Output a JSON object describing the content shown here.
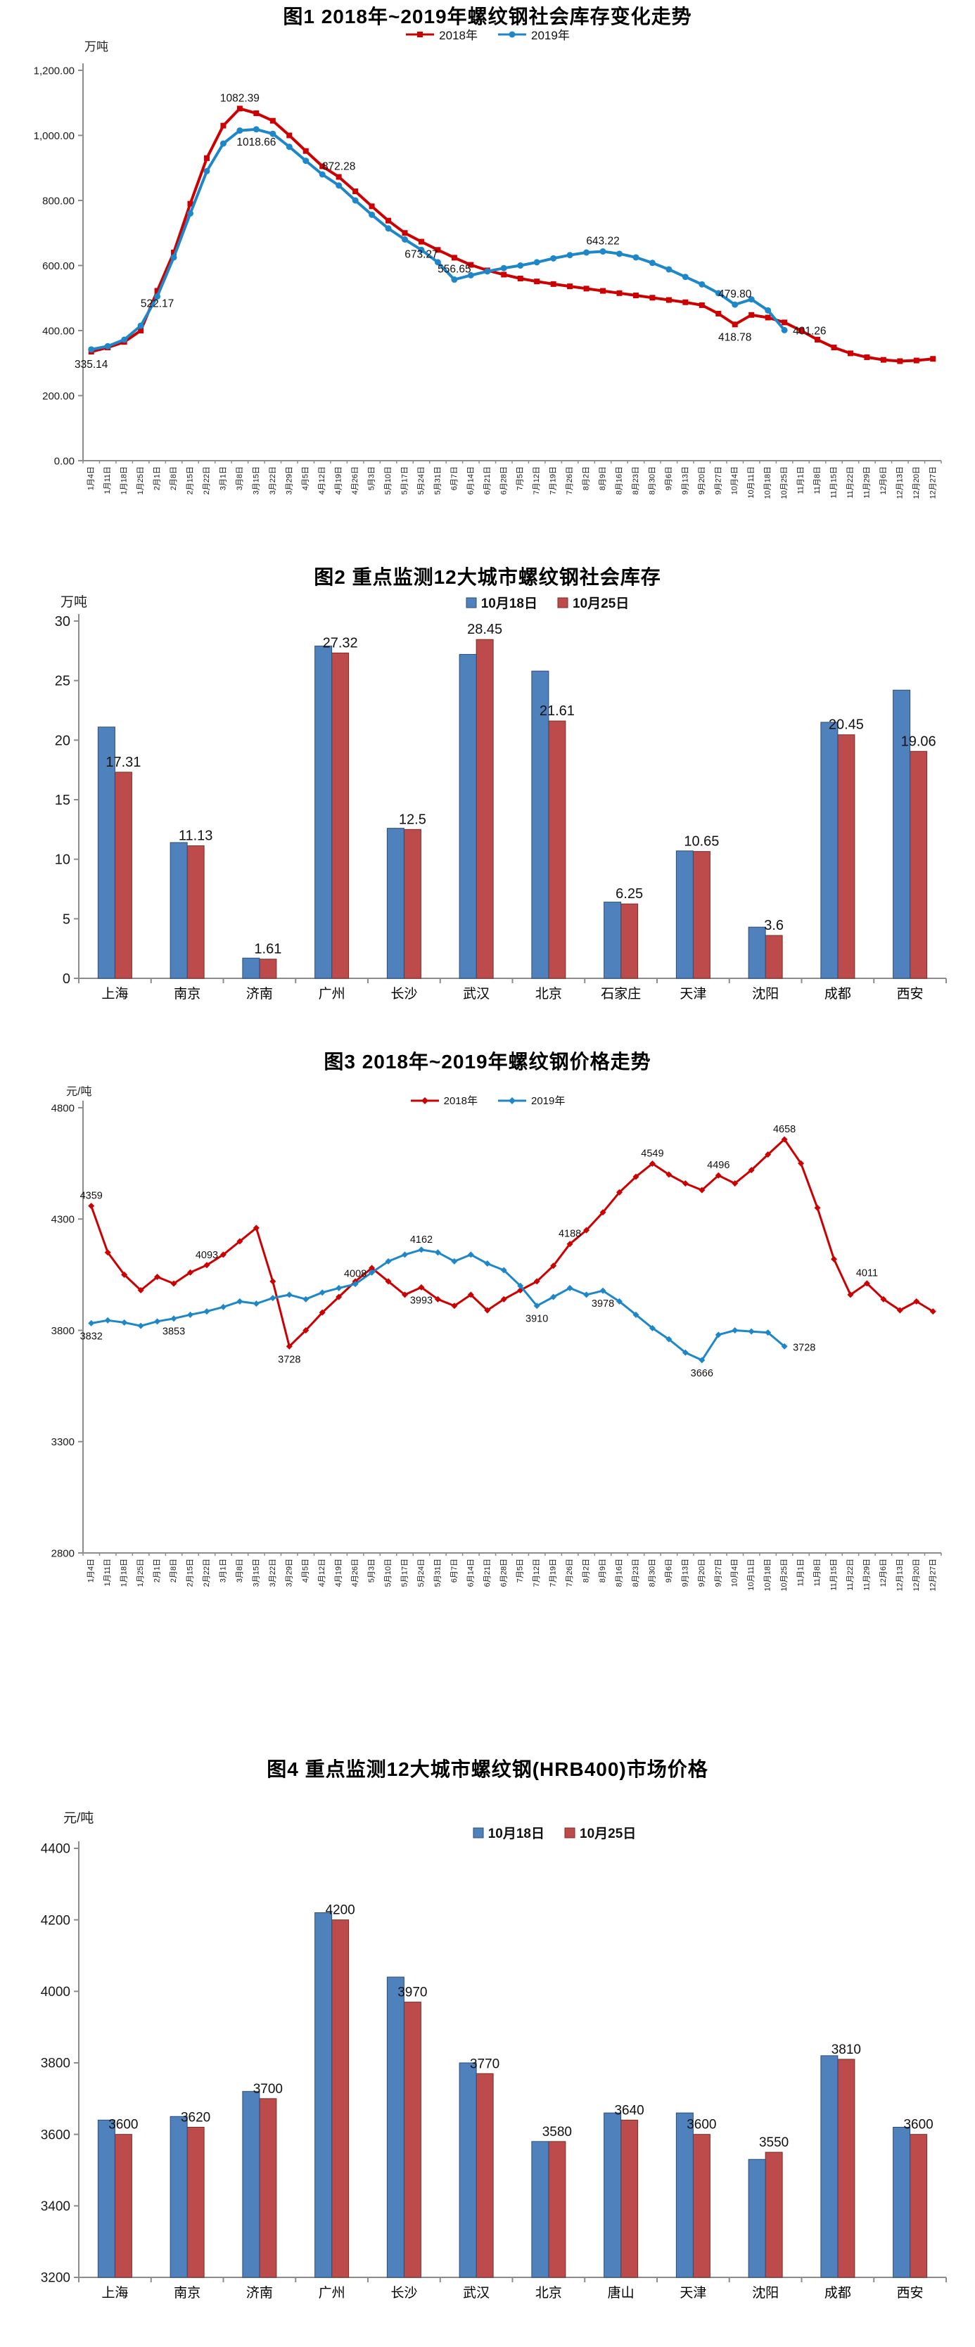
{
  "page": {
    "background": "#ffffff"
  },
  "week_dates": [
    "1月4日",
    "1月11日",
    "1月18日",
    "1月25日",
    "2月1日",
    "2月8日",
    "2月15日",
    "2月22日",
    "3月1日",
    "3月8日",
    "3月15日",
    "3月22日",
    "3月29日",
    "4月5日",
    "4月12日",
    "4月19日",
    "4月26日",
    "5月3日",
    "5月10日",
    "5月17日",
    "5月24日",
    "5月31日",
    "6月7日",
    "6月14日",
    "6月21日",
    "6月28日",
    "7月5日",
    "7月12日",
    "7月19日",
    "7月26日",
    "8月2日",
    "8月9日",
    "8月16日",
    "8月23日",
    "8月30日",
    "9月6日",
    "9月13日",
    "9月20日",
    "9月27日",
    "10月4日",
    "10月11日",
    "10月18日",
    "10月25日",
    "11月1日",
    "11月8日",
    "11月15日",
    "11月22日",
    "11月29日",
    "12月6日",
    "12月13日",
    "12月20日",
    "12月27日"
  ],
  "chart_data": [
    {
      "id": "fig1",
      "type": "line",
      "title": "图1 2018年~2019年螺纹钢社会库存变化走势",
      "ylabel": "万吨",
      "ylim": [
        0,
        1200
      ],
      "grid": false,
      "legend_position": "top-center",
      "y_ticks": [
        {
          "v": 0,
          "label": "0.00"
        },
        {
          "v": 200,
          "label": "200.00"
        },
        {
          "v": 400,
          "label": "400.00"
        },
        {
          "v": 600,
          "label": "600.00"
        },
        {
          "v": 800,
          "label": "800.00"
        },
        {
          "v": 1000,
          "label": "1,000.00"
        },
        {
          "v": 1200,
          "label": "1,200.00"
        }
      ],
      "legend": [
        {
          "label": "2018年",
          "color": "#cc0000",
          "marker": "square"
        },
        {
          "label": "2019年",
          "color": "#1e87c9",
          "marker": "circle"
        }
      ],
      "series": [
        {
          "name": "2018年",
          "color": "#cc0000",
          "marker": "square",
          "values": [
            335.14,
            348,
            365,
            400,
            522.17,
            640,
            790,
            930,
            1030,
            1082.39,
            1068,
            1045,
            1000,
            952,
            905,
            872.28,
            828,
            782,
            738,
            700,
            673.27,
            648,
            624,
            602,
            585,
            572,
            560,
            551,
            543,
            536,
            529,
            522,
            515,
            508,
            501,
            494,
            487,
            478,
            452,
            418.78,
            448,
            440,
            425,
            400,
            372,
            348,
            330,
            318,
            310,
            306,
            308,
            313
          ],
          "point_labels": [
            {
              "i": 0,
              "text": "335.14",
              "pos": "below"
            },
            {
              "i": 4,
              "text": "522.17",
              "pos": "below"
            },
            {
              "i": 9,
              "text": "1082.39",
              "pos": "above"
            },
            {
              "i": 15,
              "text": "872.28",
              "pos": "above"
            },
            {
              "i": 20,
              "text": "673.27",
              "pos": "below"
            },
            {
              "i": 39,
              "text": "418.78",
              "pos": "below"
            }
          ]
        },
        {
          "name": "2019年",
          "color": "#1e87c9",
          "marker": "circle",
          "values": [
            342,
            352,
            372,
            415,
            505,
            625,
            760,
            890,
            975,
            1015,
            1018.66,
            1005,
            965,
            922,
            880,
            846,
            800,
            756,
            714,
            680,
            648,
            610,
            556.65,
            570,
            582,
            592,
            600,
            610,
            622,
            632,
            640,
            643.22,
            636,
            625,
            608,
            588,
            565,
            542,
            515,
            479.8,
            496,
            462,
            401.26
          ],
          "point_labels": [
            {
              "i": 10,
              "text": "1018.66",
              "pos": "below"
            },
            {
              "i": 22,
              "text": "556.65",
              "pos": "above"
            },
            {
              "i": 31,
              "text": "643.22",
              "pos": "above"
            },
            {
              "i": 39,
              "text": "479.80",
              "pos": "above"
            },
            {
              "i": 42,
              "text": "401.26",
              "pos": "right"
            }
          ]
        }
      ]
    },
    {
      "id": "fig2",
      "type": "bar",
      "title": "图2 重点监测12大城市螺纹钢社会库存",
      "ylabel": "万吨",
      "ylim": [
        0,
        30
      ],
      "y_ticks": [
        {
          "v": 0,
          "label": "0"
        },
        {
          "v": 5,
          "label": "5"
        },
        {
          "v": 10,
          "label": "10"
        },
        {
          "v": 15,
          "label": "15"
        },
        {
          "v": 20,
          "label": "20"
        },
        {
          "v": 25,
          "label": "25"
        },
        {
          "v": 30,
          "label": "30"
        }
      ],
      "categories": [
        "上海",
        "南京",
        "济南",
        "广州",
        "长沙",
        "武汉",
        "北京",
        "石家庄",
        "天津",
        "沈阳",
        "成都",
        "西安"
      ],
      "legend": [
        {
          "label": "10月18日",
          "color": "#4f81bd",
          "border": "#2c4d75"
        },
        {
          "label": "10月25日",
          "color": "#bd4b4b",
          "border": "#7c2d25"
        }
      ],
      "series": [
        {
          "name": "10月18日",
          "color": "#4f81bd",
          "border": "#2c4d75",
          "values": [
            21.1,
            11.4,
            1.7,
            27.9,
            12.6,
            27.2,
            25.8,
            6.4,
            10.7,
            4.3,
            21.5,
            24.2
          ]
        },
        {
          "name": "10月25日",
          "color": "#bd4b4b",
          "border": "#7c2d25",
          "values": [
            17.31,
            11.13,
            1.61,
            27.32,
            12.5,
            28.45,
            21.61,
            6.25,
            10.65,
            3.6,
            20.45,
            19.06
          ]
        }
      ],
      "bar_labels": [
        "17.31",
        "11.13",
        "1.61",
        "27.32",
        "12.5",
        "28.45",
        "21.61",
        "6.25",
        "10.65",
        "3.6",
        "20.45",
        "19.06"
      ]
    },
    {
      "id": "fig3",
      "type": "line",
      "title": "图3 2018年~2019年螺纹钢价格走势",
      "ylabel": "元/吨",
      "ylim": [
        2800,
        4800
      ],
      "grid": false,
      "legend_position": "top-center",
      "y_ticks": [
        {
          "v": 2800,
          "label": "2800"
        },
        {
          "v": 3300,
          "label": "3300"
        },
        {
          "v": 3800,
          "label": "3800"
        },
        {
          "v": 4300,
          "label": "4300"
        },
        {
          "v": 4800,
          "label": "4800"
        }
      ],
      "legend": [
        {
          "label": "2018年",
          "color": "#cc0000",
          "marker": "diamond"
        },
        {
          "label": "2019年",
          "color": "#1e87c9",
          "marker": "diamond"
        }
      ],
      "series": [
        {
          "name": "2018年",
          "color": "#cc0000",
          "marker": "diamond",
          "values": [
            4359,
            4150,
            4050,
            3980,
            4040,
            4010,
            4060,
            4093,
            4140,
            4200,
            4260,
            4020,
            3728,
            3800,
            3880,
            3950,
            4020,
            4080,
            4020,
            3960,
            3993,
            3940,
            3910,
            3960,
            3890,
            3940,
            3980,
            4020,
            4090,
            4188,
            4250,
            4330,
            4420,
            4490,
            4549,
            4500,
            4460,
            4430,
            4496,
            4460,
            4520,
            4590,
            4658,
            4550,
            4350,
            4120,
            3960,
            4011,
            3940,
            3890,
            3930,
            3885
          ],
          "point_labels": [
            {
              "i": 0,
              "text": "4359",
              "pos": "above"
            },
            {
              "i": 7,
              "text": "4093",
              "pos": "above"
            },
            {
              "i": 12,
              "text": "3728",
              "pos": "below"
            },
            {
              "i": 20,
              "text": "3993",
              "pos": "below"
            },
            {
              "i": 29,
              "text": "4188",
              "pos": "above"
            },
            {
              "i": 34,
              "text": "4549",
              "pos": "above"
            },
            {
              "i": 38,
              "text": "4496",
              "pos": "above"
            },
            {
              "i": 42,
              "text": "4658",
              "pos": "above"
            },
            {
              "i": 47,
              "text": "4011",
              "pos": "above"
            }
          ]
        },
        {
          "name": "2019年",
          "color": "#1e87c9",
          "marker": "diamond",
          "values": [
            3832,
            3845,
            3835,
            3820,
            3840,
            3853,
            3870,
            3885,
            3905,
            3930,
            3920,
            3945,
            3960,
            3940,
            3970,
            3990,
            4008,
            4060,
            4110,
            4140,
            4162,
            4150,
            4110,
            4140,
            4100,
            4070,
            4000,
            3910,
            3950,
            3990,
            3960,
            3978,
            3930,
            3870,
            3810,
            3760,
            3700,
            3666,
            3780,
            3800,
            3795,
            3790,
            3728
          ],
          "point_labels": [
            {
              "i": 0,
              "text": "3832",
              "pos": "below"
            },
            {
              "i": 5,
              "text": "3853",
              "pos": "below"
            },
            {
              "i": 16,
              "text": "4008",
              "pos": "above"
            },
            {
              "i": 20,
              "text": "4162",
              "pos": "above"
            },
            {
              "i": 27,
              "text": "3910",
              "pos": "below"
            },
            {
              "i": 31,
              "text": "3978",
              "pos": "below"
            },
            {
              "i": 37,
              "text": "3666",
              "pos": "below"
            },
            {
              "i": 42,
              "text": "3728",
              "pos": "right"
            }
          ]
        }
      ]
    },
    {
      "id": "fig4",
      "type": "bar",
      "title": "图4 重点监测12大城市螺纹钢(HRB400)市场价格",
      "ylabel": "元/吨",
      "ylim": [
        3200,
        4400
      ],
      "y_ticks": [
        {
          "v": 3200,
          "label": "3200"
        },
        {
          "v": 3400,
          "label": "3400"
        },
        {
          "v": 3600,
          "label": "3600"
        },
        {
          "v": 3800,
          "label": "3800"
        },
        {
          "v": 4000,
          "label": "4000"
        },
        {
          "v": 4200,
          "label": "4200"
        },
        {
          "v": 4400,
          "label": "4400"
        }
      ],
      "categories": [
        "上海",
        "南京",
        "济南",
        "广州",
        "长沙",
        "武汉",
        "北京",
        "唐山",
        "天津",
        "沈阳",
        "成都",
        "西安"
      ],
      "legend": [
        {
          "label": "10月18日",
          "color": "#4f81bd",
          "border": "#2c4d75"
        },
        {
          "label": "10月25日",
          "color": "#bd4b4b",
          "border": "#7c2d25"
        }
      ],
      "series": [
        {
          "name": "10月18日",
          "color": "#4f81bd",
          "border": "#2c4d75",
          "values": [
            3640,
            3650,
            3720,
            4220,
            4040,
            3800,
            3580,
            3660,
            3660,
            3530,
            3820,
            3620
          ]
        },
        {
          "name": "10月25日",
          "color": "#bd4b4b",
          "border": "#7c2d25",
          "values": [
            3600,
            3620,
            3700,
            4200,
            3970,
            3770,
            3580,
            3640,
            3600,
            3550,
            3810,
            3600
          ]
        }
      ],
      "bar_labels": [
        "3600",
        "3620",
        "3700",
        "4200",
        "3970",
        "3770",
        "3580",
        "3640",
        "3600",
        "3550",
        "3810",
        "3600"
      ]
    }
  ]
}
